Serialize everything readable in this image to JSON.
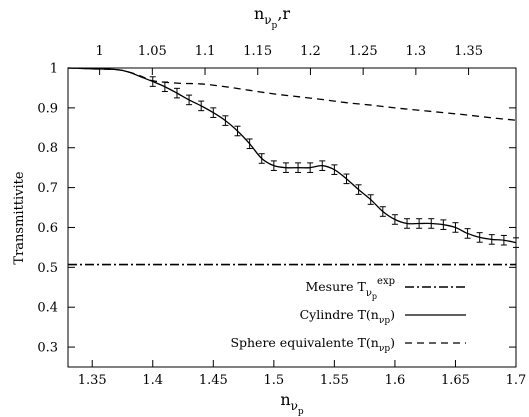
{
  "chart_data": {
    "type": "line",
    "title": "",
    "xlabel": "n",
    "xlabel_sub": "ν",
    "xlabel_subsub": "p",
    "x2label": "n",
    "x2label_sub": "ν",
    "x2label_subsub": "p",
    "x2label_suffix": ",r",
    "ylabel": "Transmittivite",
    "xlim": [
      1.33,
      1.7
    ],
    "ylim": [
      0.25,
      1.0
    ],
    "x2lim": [
      0.97,
      1.395
    ],
    "xticks": [
      "1.35",
      "1.4",
      "1.45",
      "1.5",
      "1.55",
      "1.6",
      "1.65",
      "1.7"
    ],
    "x2ticks": [
      "1",
      "1.05",
      "1.1",
      "1.15",
      "1.2",
      "1.25",
      "1.3",
      "1.35"
    ],
    "yticks": [
      "0.3",
      "0.4",
      "0.5",
      "0.6",
      "0.7",
      "0.8",
      "0.9",
      "1"
    ],
    "legend_position": "bottom-right",
    "series": [
      {
        "name": "Mesure T",
        "name_sub": "ν",
        "name_subsub": "p",
        "name_sup": "exp",
        "style": "dashdot",
        "x": [
          1.33,
          1.7
        ],
        "y": [
          0.507,
          0.507
        ]
      },
      {
        "name": "Cylindre T(n",
        "name_sub": "νp",
        "name_suffix": ")",
        "style": "solid",
        "errorbars": true,
        "x": [
          1.33,
          1.35,
          1.37,
          1.38,
          1.39,
          1.4,
          1.41,
          1.42,
          1.43,
          1.44,
          1.45,
          1.46,
          1.47,
          1.48,
          1.49,
          1.5,
          1.51,
          1.52,
          1.53,
          1.54,
          1.55,
          1.56,
          1.57,
          1.58,
          1.59,
          1.6,
          1.61,
          1.62,
          1.63,
          1.64,
          1.65,
          1.66,
          1.67,
          1.68,
          1.69,
          1.7
        ],
        "y": [
          1.0,
          0.998,
          0.996,
          0.99,
          0.978,
          0.966,
          0.953,
          0.937,
          0.92,
          0.905,
          0.888,
          0.868,
          0.842,
          0.81,
          0.773,
          0.755,
          0.75,
          0.75,
          0.75,
          0.755,
          0.745,
          0.722,
          0.695,
          0.67,
          0.64,
          0.62,
          0.61,
          0.61,
          0.61,
          0.607,
          0.6,
          0.585,
          0.575,
          0.57,
          0.568,
          0.562
        ]
      },
      {
        "name": "Sphere equivalente T(n",
        "name_sub": "νp",
        "name_suffix": ")",
        "style": "dashed",
        "x": [
          1.33,
          1.35,
          1.37,
          1.38,
          1.39,
          1.4,
          1.42,
          1.44,
          1.46,
          1.48,
          1.5,
          1.52,
          1.54,
          1.56,
          1.58,
          1.6,
          1.62,
          1.64,
          1.66,
          1.68,
          1.7
        ],
        "y": [
          1.0,
          0.998,
          0.996,
          0.99,
          0.98,
          0.968,
          0.962,
          0.96,
          0.953,
          0.944,
          0.935,
          0.928,
          0.921,
          0.913,
          0.907,
          0.9,
          0.894,
          0.888,
          0.882,
          0.875,
          0.869
        ]
      }
    ]
  }
}
